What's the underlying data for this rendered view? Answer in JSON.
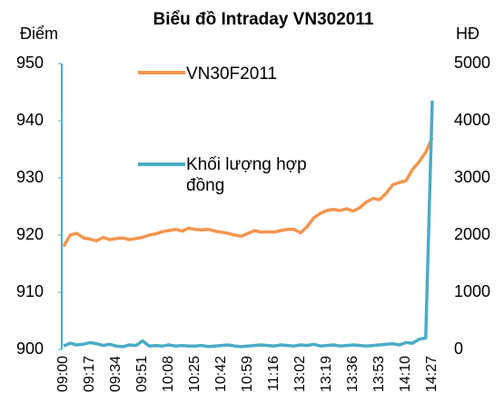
{
  "chart_data": {
    "type": "line",
    "title": "Biểu đồ Intraday VN302011",
    "y_label": "Điểm",
    "y2_label": "HĐ",
    "categories": [
      "09:00",
      null,
      null,
      null,
      "09:17",
      null,
      null,
      null,
      "09:34",
      null,
      null,
      null,
      "09:51",
      null,
      null,
      null,
      "10:08",
      null,
      null,
      null,
      "10:25",
      null,
      null,
      null,
      "10:42",
      null,
      null,
      null,
      "10:59",
      null,
      null,
      null,
      "11:16",
      null,
      null,
      null,
      "13:02",
      null,
      null,
      null,
      "13:19",
      null,
      null,
      null,
      "13:36",
      null,
      null,
      null,
      "13:53",
      null,
      null,
      null,
      "14:10",
      null,
      null,
      null,
      "14:27"
    ],
    "series": [
      {
        "name": "VN30F2011",
        "color": "#f4954f",
        "values": [
          918,
          920,
          920.3,
          919.5,
          919.3,
          919,
          919.6,
          919.2,
          919.4,
          919.5,
          919.2,
          919.4,
          919.6,
          920,
          920.2,
          920.6,
          920.8,
          921,
          920.7,
          921.2,
          921,
          920.9,
          921,
          920.7,
          920.5,
          920.3,
          920,
          919.8,
          920.3,
          920.8,
          920.5,
          920.6,
          920.5,
          920.8,
          921,
          921,
          920.4,
          921.5,
          923,
          923.8,
          924.3,
          924.5,
          924.3,
          924.6,
          924.2,
          924.8,
          925.8,
          926.4,
          926.2,
          927.3,
          928.8,
          929.2,
          929.5,
          931.5,
          932.8,
          934.5,
          937
        ]
      },
      {
        "name": "Khối lượng hợp đồng",
        "color": "#4bacc6",
        "axis": "y2",
        "values": [
          60,
          110,
          80,
          90,
          120,
          100,
          70,
          90,
          60,
          50,
          80,
          70,
          150,
          60,
          70,
          60,
          80,
          60,
          70,
          60,
          60,
          70,
          50,
          60,
          70,
          80,
          60,
          50,
          60,
          70,
          80,
          70,
          60,
          80,
          70,
          60,
          80,
          70,
          90,
          60,
          70,
          80,
          60,
          70,
          80,
          70,
          60,
          70,
          80,
          90,
          100,
          80,
          120,
          110,
          180,
          200,
          4350
        ]
      }
    ],
    "ylim": [
      900,
      950
    ],
    "yticks": [
      900,
      910,
      920,
      930,
      940,
      950
    ],
    "y2lim": [
      0,
      5000
    ],
    "y2ticks": [
      0,
      1000,
      2000,
      3000,
      4000,
      5000
    ]
  }
}
